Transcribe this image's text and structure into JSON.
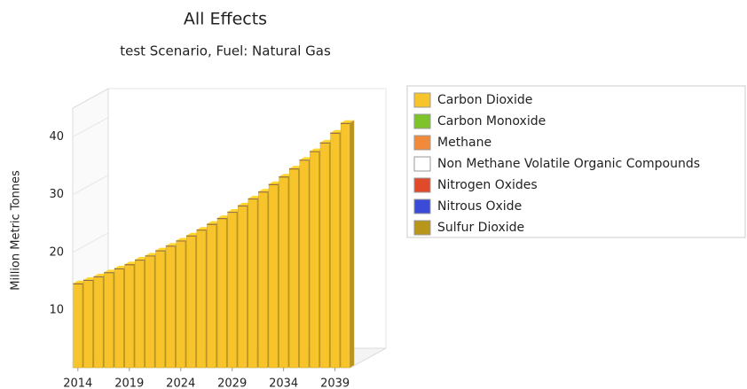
{
  "chart_data": {
    "type": "bar3d",
    "title": "All Effects",
    "subtitle": "test Scenario, Fuel: Natural Gas",
    "y_label": "Million Metric Tonnes",
    "x": [
      2014,
      2015,
      2016,
      2017,
      2018,
      2019,
      2020,
      2021,
      2022,
      2023,
      2024,
      2025,
      2026,
      2027,
      2028,
      2029,
      2030,
      2031,
      2032,
      2033,
      2034,
      2035,
      2036,
      2037,
      2038,
      2039,
      2040
    ],
    "xticks": [
      2014,
      2019,
      2024,
      2029,
      2034,
      2039
    ],
    "ylim": [
      0,
      45
    ],
    "yticks": [
      10,
      20,
      30,
      40
    ],
    "stacked": true,
    "series": [
      {
        "name": "Carbon Dioxide",
        "color": "#f7c52b",
        "values": [
          14.5,
          15.1,
          15.7,
          16.4,
          17.1,
          17.8,
          18.6,
          19.3,
          20.2,
          21.0,
          21.9,
          22.8,
          23.8,
          24.8,
          25.8,
          26.9,
          28.0,
          29.2,
          30.4,
          31.7,
          33.0,
          34.4,
          35.9,
          37.4,
          38.9,
          40.6,
          42.3
        ]
      },
      {
        "name": "Carbon Monoxide",
        "color": "#7dc42a",
        "values": [
          0.02,
          0.02,
          0.02,
          0.02,
          0.02,
          0.02,
          0.02,
          0.02,
          0.02,
          0.02,
          0.02,
          0.02,
          0.02,
          0.02,
          0.02,
          0.02,
          0.02,
          0.02,
          0.02,
          0.02,
          0.02,
          0.02,
          0.02,
          0.02,
          0.02,
          0.02,
          0.02
        ]
      },
      {
        "name": "Methane",
        "color": "#f28a3c",
        "values": [
          0.03,
          0.03,
          0.03,
          0.03,
          0.03,
          0.03,
          0.03,
          0.03,
          0.03,
          0.03,
          0.03,
          0.03,
          0.03,
          0.03,
          0.03,
          0.03,
          0.03,
          0.03,
          0.03,
          0.03,
          0.03,
          0.03,
          0.03,
          0.03,
          0.03,
          0.03,
          0.03
        ]
      },
      {
        "name": "Non Methane Volatile Organic Compounds",
        "color": "#ffffff",
        "values": [
          0.01,
          0.01,
          0.01,
          0.01,
          0.01,
          0.01,
          0.01,
          0.01,
          0.01,
          0.01,
          0.01,
          0.01,
          0.01,
          0.01,
          0.01,
          0.01,
          0.01,
          0.01,
          0.01,
          0.01,
          0.01,
          0.01,
          0.01,
          0.01,
          0.01,
          0.01,
          0.01
        ]
      },
      {
        "name": "Nitrogen Oxides",
        "color": "#e04a2a",
        "values": [
          0.04,
          0.04,
          0.04,
          0.04,
          0.04,
          0.04,
          0.04,
          0.04,
          0.04,
          0.04,
          0.04,
          0.04,
          0.04,
          0.04,
          0.04,
          0.04,
          0.04,
          0.04,
          0.04,
          0.04,
          0.04,
          0.04,
          0.04,
          0.04,
          0.04,
          0.04,
          0.04
        ]
      },
      {
        "name": "Nitrous Oxide",
        "color": "#3a4bd8",
        "values": [
          0.02,
          0.02,
          0.02,
          0.02,
          0.02,
          0.02,
          0.02,
          0.02,
          0.02,
          0.02,
          0.02,
          0.02,
          0.02,
          0.02,
          0.02,
          0.02,
          0.02,
          0.02,
          0.02,
          0.02,
          0.02,
          0.02,
          0.02,
          0.02,
          0.02,
          0.02,
          0.02
        ]
      },
      {
        "name": "Sulfur Dioxide",
        "color": "#b8961a",
        "values": [
          0.01,
          0.01,
          0.01,
          0.01,
          0.01,
          0.01,
          0.01,
          0.01,
          0.01,
          0.01,
          0.01,
          0.01,
          0.01,
          0.01,
          0.01,
          0.01,
          0.01,
          0.01,
          0.01,
          0.01,
          0.01,
          0.01,
          0.01,
          0.01,
          0.01,
          0.01,
          0.01
        ]
      }
    ]
  }
}
